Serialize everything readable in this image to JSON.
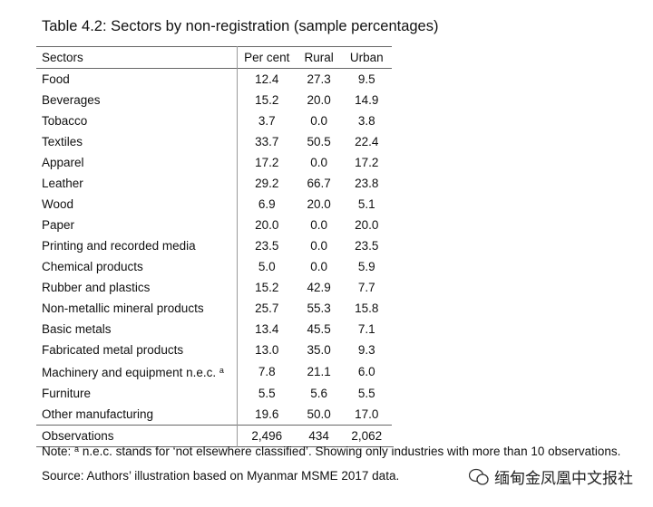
{
  "title": "Table 4.2: Sectors by non-registration (sample percentages)",
  "table": {
    "header": [
      "Sectors",
      "Per cent",
      "Rural",
      "Urban"
    ],
    "rows": [
      [
        "Food",
        "12.4",
        "27.3",
        "9.5"
      ],
      [
        "Beverages",
        "15.2",
        "20.0",
        "14.9"
      ],
      [
        "Tobacco",
        "3.7",
        "0.0",
        "3.8"
      ],
      [
        "Textiles",
        "33.7",
        "50.5",
        "22.4"
      ],
      [
        "Apparel",
        "17.2",
        "0.0",
        "17.2"
      ],
      [
        "Leather",
        "29.2",
        "66.7",
        "23.8"
      ],
      [
        "Wood",
        "6.9",
        "20.0",
        "5.1"
      ],
      [
        "Paper",
        "20.0",
        "0.0",
        "20.0"
      ],
      [
        "Printing and recorded media",
        "23.5",
        "0.0",
        "23.5"
      ],
      [
        "Chemical products",
        "5.0",
        "0.0",
        "5.9"
      ],
      [
        "Rubber and plastics",
        "15.2",
        "42.9",
        "7.7"
      ],
      [
        "Non-metallic mineral products",
        "25.7",
        "55.3",
        "15.8"
      ],
      [
        "Basic metals",
        "13.4",
        "45.5",
        "7.1"
      ],
      [
        "Fabricated metal products",
        "13.0",
        "35.0",
        "9.3"
      ],
      [
        "Machinery and equipment n.e.c.",
        "7.8",
        "21.1",
        "6.0"
      ],
      [
        "Furniture",
        "5.5",
        "5.6",
        "5.5"
      ],
      [
        "Other manufacturing",
        "19.6",
        "50.0",
        "17.0"
      ]
    ],
    "footnote_row": 14,
    "footnote_mark": "a",
    "observations": [
      "Observations",
      "2,496",
      "434",
      "2,062"
    ]
  },
  "note": {
    "label": "Note:",
    "mark": "a",
    "text": "n.e.c. stands for ‘not elsewhere classified’. Showing only industries with more than 10 observations."
  },
  "source": "Source: Authors’ illustration based on Myanmar MSME 2017 data.",
  "watermark": "缅甸金凤凰中文报社"
}
